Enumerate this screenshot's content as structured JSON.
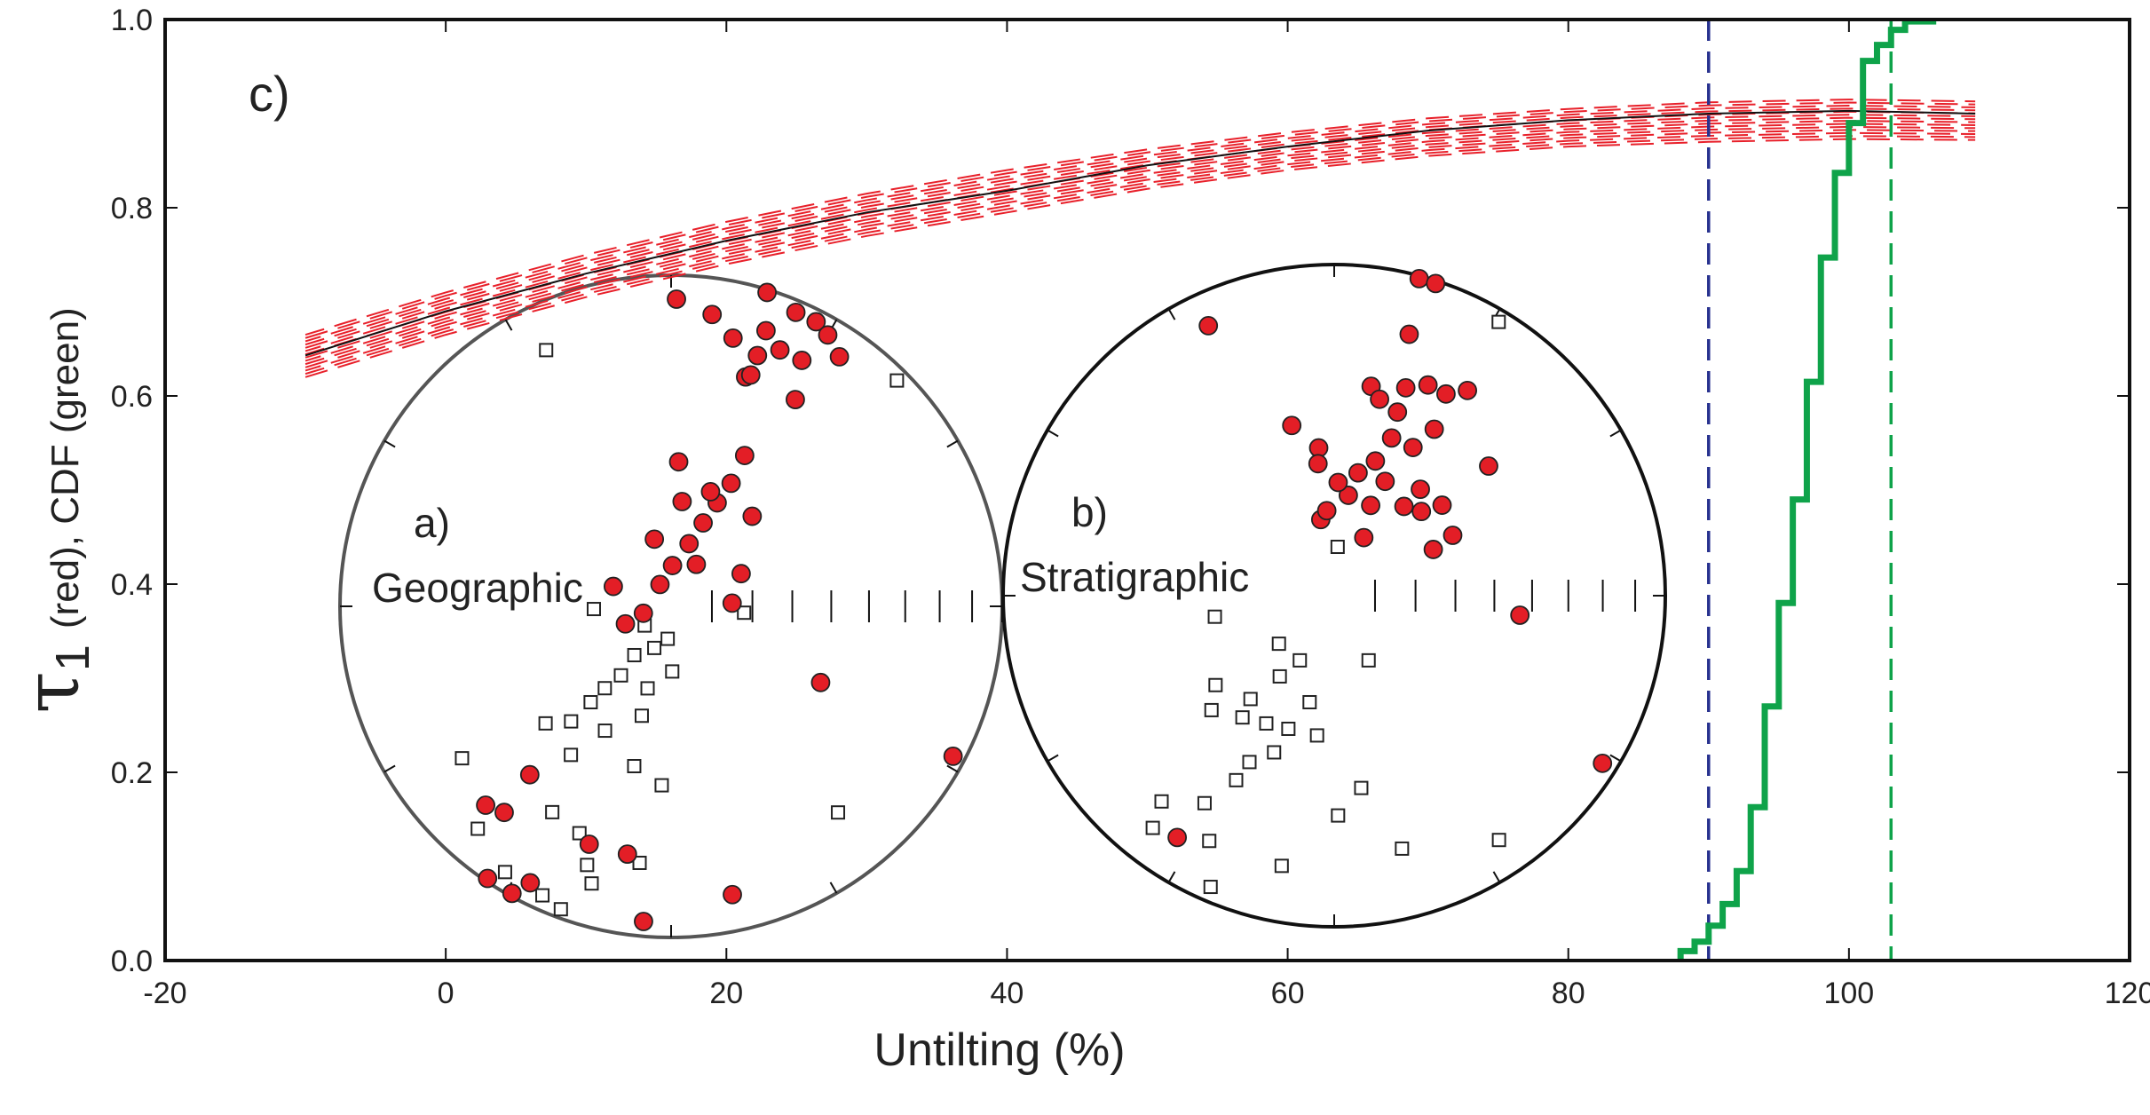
{
  "chart_data": {
    "type": "line",
    "panel_label": "c)",
    "xlabel": "Untilting (%)",
    "ylabel_symbol": "τ",
    "ylabel_subscript": "1",
    "ylabel_rest": "(red), CDF (green)",
    "xlim": [
      -20,
      120
    ],
    "ylim": [
      0,
      1.0
    ],
    "xticks": [
      -20,
      0,
      20,
      40,
      60,
      80,
      100,
      120
    ],
    "xtick_labels": [
      "-20",
      "0",
      "20",
      "40",
      "60",
      "80",
      "100",
      "120"
    ],
    "yticks": [
      0,
      0.2,
      0.4,
      0.6,
      0.8,
      1.0
    ],
    "ytick_labels": [
      "0.0",
      "0.2",
      "0.4",
      "0.6",
      "0.8",
      "1.0"
    ],
    "grid": false,
    "colors": {
      "tau1": "#111111",
      "bootstrap": "#e8202a",
      "cdf": "#0fa34a",
      "lower_bound": "#27318f",
      "upper_bound": "#0fa34a"
    },
    "tau1_curve": {
      "x": [
        -10,
        0,
        10,
        20,
        30,
        40,
        50,
        60,
        70,
        80,
        90,
        100,
        109
      ],
      "y": [
        0.643,
        0.69,
        0.73,
        0.765,
        0.795,
        0.818,
        0.845,
        0.865,
        0.882,
        0.893,
        0.9,
        0.903,
        0.9
      ]
    },
    "bootstrap_envelope": {
      "x": [
        -10,
        0,
        10,
        20,
        30,
        40,
        50,
        60,
        70,
        80,
        90,
        100,
        109
      ],
      "lower": [
        0.62,
        0.665,
        0.705,
        0.74,
        0.77,
        0.795,
        0.82,
        0.84,
        0.855,
        0.865,
        0.87,
        0.873,
        0.872
      ],
      "upper": [
        0.665,
        0.71,
        0.75,
        0.785,
        0.815,
        0.84,
        0.862,
        0.88,
        0.895,
        0.905,
        0.912,
        0.915,
        0.913
      ],
      "count": 14
    },
    "cdf": {
      "x": [
        88,
        89,
        90,
        91,
        92,
        93,
        94,
        95,
        96,
        97,
        98,
        99,
        100,
        101,
        102,
        103,
        104,
        106
      ],
      "y": [
        0.01,
        0.02,
        0.037,
        0.06,
        0.095,
        0.163,
        0.27,
        0.38,
        0.49,
        0.615,
        0.747,
        0.837,
        0.89,
        0.956,
        0.973,
        0.989,
        0.998,
        1.0
      ]
    },
    "confidence_bounds": [
      90,
      103
    ],
    "stereonets": [
      {
        "label": "a)",
        "title": "Geographic",
        "lower_hemisphere": [
          [
            1,
            8
          ],
          [
            17,
            1
          ],
          [
            8,
            12
          ],
          [
            19,
            21
          ],
          [
            23,
            4
          ],
          [
            27,
            4
          ],
          [
            30,
            6
          ],
          [
            23,
            17
          ],
          [
            28,
            17
          ],
          [
            18,
            28
          ],
          [
            31,
            28
          ],
          [
            34,
            10
          ],
          [
            13,
            18
          ],
          [
            19,
            13
          ],
          [
            19,
            27
          ],
          [
            3,
            54
          ],
          [
            26,
            48
          ],
          [
            26,
            56
          ],
          [
            24,
            62
          ],
          [
            21,
            68
          ],
          [
            6,
            64
          ],
          [
            16,
            74
          ],
          [
            2,
            80
          ],
          [
            346,
            73
          ],
          [
            333,
            84
          ],
          [
            31,
            78
          ],
          [
            42,
            60
          ],
          [
            65,
            71
          ],
          [
            87,
            75
          ],
          [
            289,
            75
          ],
          [
            249,
            78
          ],
          [
            256,
            83
          ],
          [
            19,
            60
          ],
          [
            117,
            48
          ],
          [
            118,
            4
          ],
          [
            220,
            34
          ],
          [
            223,
            19
          ],
          [
            219,
            21
          ],
          [
            199,
            25
          ],
          [
            190,
            25
          ],
          [
            185,
            5
          ],
          [
            168,
            12
          ],
          [
            214,
            1
          ],
          [
            209,
            1
          ],
          [
            207,
            7
          ]
        ],
        "upper_hemisphere": [
          [
            268,
            -71
          ],
          [
            234,
            -82
          ],
          [
            186,
            -82
          ],
          [
            202,
            -79
          ],
          [
            217,
            -75
          ],
          [
            216,
            -69
          ],
          [
            179,
            -74
          ],
          [
            219,
            -64
          ],
          [
            196,
            -69
          ],
          [
            195,
            -62
          ],
          [
            220,
            -59
          ],
          [
            221,
            -52
          ],
          [
            208,
            -55
          ],
          [
            193,
            -49
          ],
          [
            183,
            -45
          ],
          [
            227,
            -47
          ],
          [
            214,
            -45
          ],
          [
            234,
            -23
          ],
          [
            221,
            -12
          ],
          [
            210,
            -29
          ],
          [
            202,
            -27
          ],
          [
            198,
            -19
          ],
          [
            187,
            -23
          ],
          [
            334,
            -15
          ],
          [
            45,
            -4
          ],
          [
            141,
            -21
          ],
          [
            204,
            -5
          ],
          [
            200,
            -3
          ],
          [
            212,
            -6
          ],
          [
            196,
            -14
          ],
          [
            95,
            -72
          ]
        ]
      },
      {
        "label": "b)",
        "title": "Stratigraphic",
        "lower_hemisphere": [
          [
            15,
            1
          ],
          [
            18,
            1
          ],
          [
            335,
            11
          ],
          [
            16,
            19
          ],
          [
            346,
            46
          ],
          [
            354,
            53
          ],
          [
            353,
            57
          ],
          [
            10,
            36
          ],
          [
            13,
            39
          ],
          [
            19,
            41
          ],
          [
            19,
            34
          ],
          [
            24,
            31
          ],
          [
            29,
            31
          ],
          [
            33,
            27
          ],
          [
            31,
            41
          ],
          [
            28,
            48
          ],
          [
            20,
            48
          ],
          [
            17,
            55
          ],
          [
            11,
            59
          ],
          [
            8,
            65
          ],
          [
            24,
            59
          ],
          [
            39,
            56
          ],
          [
            50,
            55
          ],
          [
            38,
            62
          ],
          [
            22,
            66
          ],
          [
            50,
            39
          ],
          [
            46,
            60
          ],
          [
            350,
            71
          ],
          [
            27,
            74
          ],
          [
            65,
            63
          ],
          [
            63,
            57
          ],
          [
            355,
            69
          ],
          [
            2,
            62
          ],
          [
            96,
            43
          ],
          [
            122,
            5
          ],
          [
            213,
            14
          ]
        ],
        "upper_hemisphere": [
          [
            260,
            -60
          ],
          [
            233,
            -53
          ],
          [
            227,
            -48
          ],
          [
            229,
            -72
          ],
          [
            208,
            -72
          ],
          [
            214,
            -66
          ],
          [
            219,
            -57
          ],
          [
            217,
            -52
          ],
          [
            208,
            -54
          ],
          [
            199,
            -55
          ],
          [
            193,
            -63
          ],
          [
            187,
            -55
          ],
          [
            201,
            -48
          ],
          [
            207,
            -43
          ],
          [
            208,
            -37
          ],
          [
            212,
            -27
          ],
          [
            220,
            -20
          ],
          [
            218,
            -12
          ],
          [
            207,
            -18
          ],
          [
            191,
            -18
          ],
          [
            179,
            -34
          ],
          [
            152,
            -72
          ],
          [
            172,
            -41
          ],
          [
            165,
            -22
          ],
          [
            146,
            -12
          ],
          [
            31,
            -4
          ],
          [
            4,
            -78
          ],
          [
            203,
            -5
          ]
        ]
      }
    ]
  }
}
